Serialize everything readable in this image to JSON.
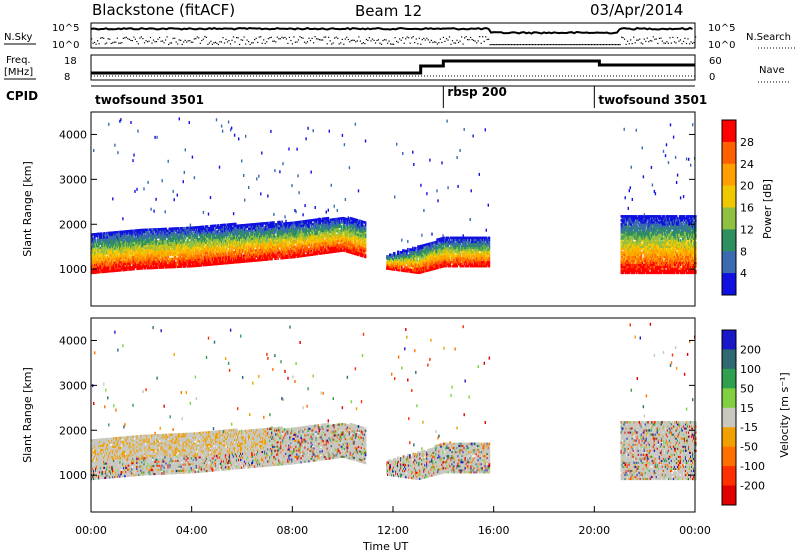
{
  "header": {
    "title": "Blackstone (fitACF)",
    "beam": "Beam 12",
    "date": "03/Apr/2014"
  },
  "nsky_panel": {
    "left_label": "N.Sky",
    "left_ticks": [
      "10^5",
      "10^0"
    ],
    "right_label": "N.Search",
    "right_ticks": [
      "10^5",
      "10^0"
    ]
  },
  "freq_panel": {
    "left_label_line1": "Freq.",
    "left_label_line2": "[MHz]",
    "left_ticks": [
      "18",
      "8"
    ],
    "right_label": "Nave",
    "right_ticks": [
      "60",
      "0"
    ]
  },
  "cpid": {
    "label": "CPID",
    "segments": [
      {
        "name": "twofsound 3501",
        "start_hour": 0.0,
        "end_hour": 14.0
      },
      {
        "name": "rbsp 200",
        "start_hour": 14.0,
        "end_hour": 20.0
      },
      {
        "name": "twofsound 3501",
        "start_hour": 20.0,
        "end_hour": 24.0
      }
    ]
  },
  "x_axis": {
    "label": "Time UT",
    "ticks": [
      "00:00",
      "04:00",
      "08:00",
      "12:00",
      "16:00",
      "20:00",
      "00:00"
    ]
  },
  "power_panel": {
    "ylabel": "Slant Range [km]",
    "yticks": [
      "1000",
      "2000",
      "3000",
      "4000"
    ],
    "colorbar_label": "Power [dB]",
    "colorbar_ticks": [
      "28",
      "24",
      "20",
      "16",
      "12",
      "8",
      "4"
    ],
    "colors": [
      "#ff0000",
      "#ff6000",
      "#ffa000",
      "#f0c800",
      "#90c040",
      "#2e9060",
      "#3a6ab0",
      "#1010e0"
    ]
  },
  "velocity_panel": {
    "ylabel": "Slant Range [km]",
    "yticks": [
      "1000",
      "2000",
      "3000",
      "4000"
    ],
    "colorbar_label": "Velocity [m s⁻¹]",
    "colorbar_ticks": [
      "200",
      "100",
      "50",
      "15",
      "-15",
      "-50",
      "-100",
      "-200"
    ],
    "colors": [
      "#1818c8",
      "#2e6a70",
      "#30a050",
      "#80d040",
      "#c8c8c0",
      "#f0a000",
      "#ff7000",
      "#ff3000",
      "#e00000"
    ]
  },
  "chart_data": {
    "type": "heatmap",
    "xlabel": "Time UT",
    "ylabel": "Slant Range [km]",
    "x_range_hours": [
      0,
      24
    ],
    "y_range_km": [
      180,
      4500
    ],
    "power_db_range": [
      0,
      30
    ],
    "velocity_range": [
      -250,
      250
    ],
    "scatter_boundary_km": [
      {
        "t": 0.0,
        "lower": 900,
        "upper": 1800
      },
      {
        "t": 2.0,
        "lower": 1000,
        "upper": 1900
      },
      {
        "t": 4.0,
        "lower": 1050,
        "upper": 1950
      },
      {
        "t": 6.0,
        "lower": 1150,
        "upper": 2000
      },
      {
        "t": 8.0,
        "lower": 1250,
        "upper": 2050
      },
      {
        "t": 10.0,
        "lower": 1400,
        "upper": 2150
      },
      {
        "t": 10.9,
        "lower": 1250,
        "upper": 2050
      },
      {
        "t": 11.7,
        "lower": 1000,
        "upper": 1300
      },
      {
        "t": 13.0,
        "lower": 900,
        "upper": 1500
      },
      {
        "t": 14.0,
        "lower": 1050,
        "upper": 1700
      },
      {
        "t": 15.8,
        "lower": 1050,
        "upper": 1700
      },
      {
        "t": 21.0,
        "lower": 900,
        "upper": 2200
      },
      {
        "t": 24.0,
        "lower": 900,
        "upper": 2200
      }
    ],
    "data_gaps_hours": [
      [
        10.9,
        11.7
      ],
      [
        15.8,
        21.0
      ]
    ]
  }
}
